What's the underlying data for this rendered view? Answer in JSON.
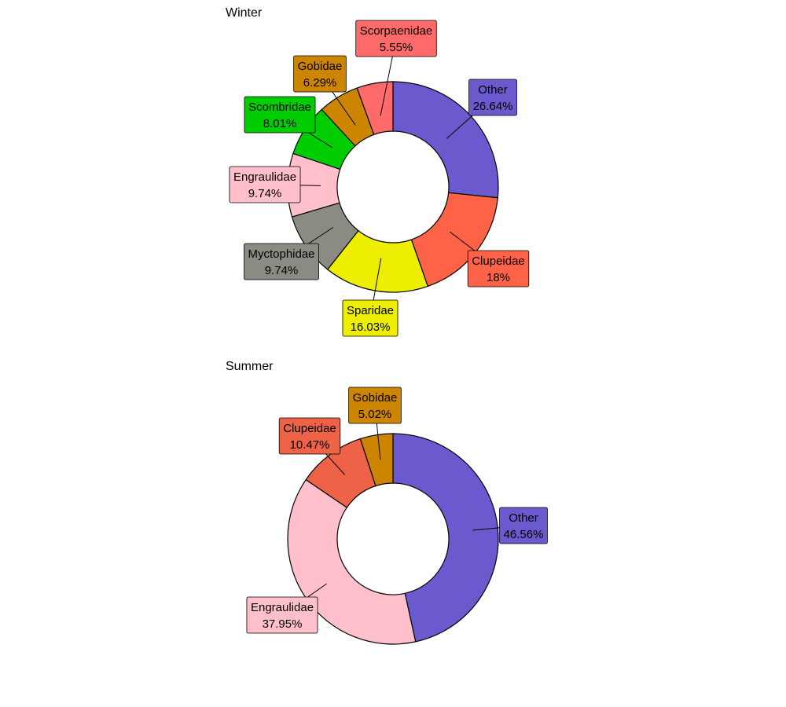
{
  "chart_data": [
    {
      "type": "pie",
      "title": "Winter",
      "categories": [
        "Other",
        "Clupeidae",
        "Sparidae",
        "Myctophidae",
        "Engraulidae",
        "Scombridae",
        "Gobidae",
        "Scorpaenidae"
      ],
      "values": [
        26.64,
        18,
        16.03,
        9.74,
        9.74,
        8.01,
        6.29,
        5.55
      ],
      "value_labels": [
        "26.64%",
        "18%",
        "16.03%",
        "9.74%",
        "9.74%",
        "8.01%",
        "6.29%",
        "5.55%"
      ],
      "colors": [
        "#6A5ACD",
        "#FF6347",
        "#EEEE00",
        "#8B8B83",
        "#FFC0CB",
        "#00CD00",
        "#CD8500",
        "#FF6A6A"
      ]
    },
    {
      "type": "pie",
      "title": "Summer",
      "categories": [
        "Other",
        "Engraulidae",
        "Clupeidae",
        "Gobidae"
      ],
      "values": [
        46.56,
        37.95,
        10.47,
        5.02
      ],
      "value_labels": [
        "46.56%",
        "37.95%",
        "10.47%",
        "5.02%"
      ],
      "colors": [
        "#6A5ACD",
        "#FFC0CB",
        "#EE6347",
        "#CD8500"
      ]
    }
  ]
}
